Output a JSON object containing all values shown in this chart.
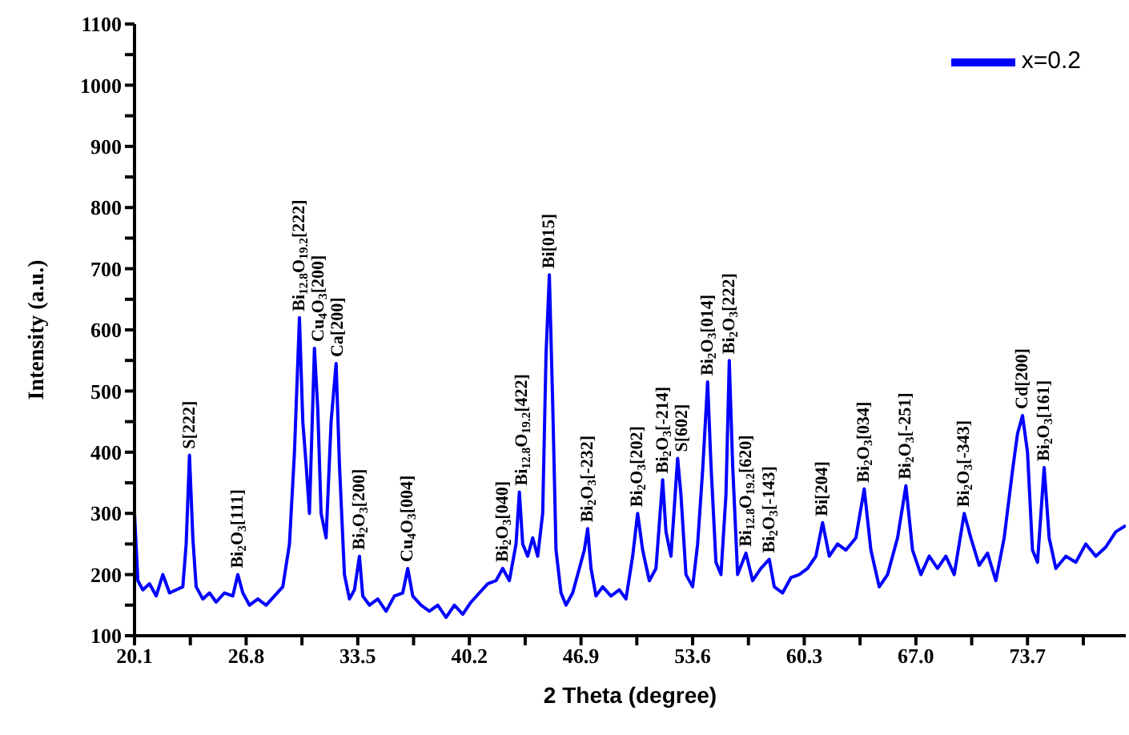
{
  "chart_data": {
    "type": "line",
    "xlabel": "2 Theta (degree)",
    "ylabel": "Intensity (a.u.)",
    "xlim": [
      20.1,
      79.6
    ],
    "xticks": [
      20.1,
      {
        "value": 23.45,
        "label": null
      },
      26.8,
      {
        "value": 30.15,
        "label": null
      },
      33.5,
      {
        "value": 36.85,
        "label": null
      },
      40.2,
      {
        "value": 43.55,
        "label": null
      },
      46.9,
      {
        "value": 50.25,
        "label": null
      },
      53.6,
      {
        "value": 56.95,
        "label": null
      },
      60.3,
      {
        "value": 63.65,
        "label": null
      },
      {
        "value": 67.0,
        "label": "67.0"
      },
      {
        "value": 70.35,
        "label": null
      },
      73.7,
      {
        "value": 77.05,
        "label": null
      }
    ],
    "ylim": [
      100,
      1100
    ],
    "yticks": [
      100,
      {
        "value": 150,
        "label": null
      },
      200,
      {
        "value": 250,
        "label": null
      },
      300,
      {
        "value": 350,
        "label": null
      },
      400,
      {
        "value": 450,
        "label": null
      },
      500,
      {
        "value": 550,
        "label": null
      },
      600,
      {
        "value": 650,
        "label": null
      },
      700,
      {
        "value": 750,
        "label": null
      },
      800,
      {
        "value": 850,
        "label": null
      },
      900,
      {
        "value": 950,
        "label": null
      },
      1000,
      {
        "value": 1050,
        "label": null
      },
      1100
    ],
    "grid": false,
    "legend": "top right",
    "marker": "none",
    "line_style": "solid",
    "x": [
      20.1,
      20.3,
      20.6,
      21.0,
      21.4,
      21.8,
      22.2,
      22.6,
      23.0,
      23.2,
      23.4,
      23.6,
      23.8,
      24.2,
      24.6,
      25.0,
      25.5,
      26.0,
      26.3,
      26.6,
      27.0,
      27.5,
      28.0,
      28.5,
      29.0,
      29.4,
      29.7,
      30.0,
      30.2,
      30.4,
      30.6,
      30.9,
      31.1,
      31.3,
      31.6,
      31.9,
      32.2,
      32.4,
      32.7,
      33.0,
      33.3,
      33.6,
      33.8,
      34.2,
      34.7,
      35.2,
      35.7,
      36.2,
      36.5,
      36.8,
      37.3,
      37.8,
      38.3,
      38.8,
      39.3,
      39.8,
      40.3,
      40.8,
      41.3,
      41.8,
      42.2,
      42.6,
      43.0,
      43.2,
      43.4,
      43.7,
      44.0,
      44.3,
      44.6,
      44.8,
      45.0,
      45.2,
      45.4,
      45.7,
      46.0,
      46.4,
      46.8,
      47.1,
      47.3,
      47.5,
      47.8,
      48.2,
      48.7,
      49.2,
      49.6,
      50.0,
      50.3,
      50.6,
      51.0,
      51.4,
      51.8,
      52.0,
      52.3,
      52.7,
      52.9,
      53.2,
      53.6,
      53.9,
      54.2,
      54.5,
      54.7,
      55.0,
      55.3,
      55.6,
      55.8,
      56.0,
      56.3,
      56.8,
      57.2,
      57.7,
      58.2,
      58.5,
      59.0,
      59.5,
      60.0,
      60.5,
      61.0,
      61.4,
      61.8,
      62.3,
      62.8,
      63.4,
      63.9,
      64.3,
      64.8,
      65.3,
      65.9,
      66.4,
      66.8,
      67.3,
      67.8,
      68.3,
      68.8,
      69.3,
      69.9,
      70.3,
      70.8,
      71.3,
      71.8,
      72.3,
      72.8,
      73.1,
      73.4,
      73.7,
      74.0,
      74.3,
      74.7,
      75.0,
      75.4,
      76.0,
      76.6,
      77.2,
      77.8,
      78.4,
      79.0,
      79.6
    ],
    "series": [
      {
        "name": "x=0.2",
        "color": "#0000ff",
        "values": [
          300,
          190,
          175,
          185,
          165,
          200,
          170,
          175,
          180,
          250,
          395,
          260,
          180,
          160,
          170,
          155,
          170,
          165,
          200,
          170,
          150,
          160,
          150,
          165,
          180,
          250,
          400,
          620,
          450,
          380,
          300,
          570,
          470,
          300,
          260,
          450,
          545,
          380,
          200,
          160,
          175,
          230,
          165,
          150,
          160,
          140,
          165,
          170,
          210,
          165,
          150,
          140,
          150,
          130,
          150,
          135,
          155,
          170,
          185,
          190,
          210,
          190,
          250,
          335,
          250,
          230,
          260,
          230,
          300,
          560,
          690,
          480,
          240,
          170,
          150,
          170,
          210,
          240,
          275,
          210,
          165,
          180,
          165,
          175,
          160,
          230,
          300,
          240,
          190,
          210,
          355,
          270,
          230,
          390,
          330,
          200,
          180,
          250,
          370,
          515,
          380,
          220,
          200,
          330,
          550,
          380,
          200,
          235,
          190,
          210,
          225,
          180,
          170,
          195,
          200,
          210,
          230,
          285,
          230,
          250,
          240,
          260,
          340,
          240,
          180,
          200,
          260,
          345,
          240,
          200,
          230,
          210,
          230,
          200,
          300,
          260,
          215,
          235,
          190,
          260,
          370,
          430,
          460,
          400,
          240,
          220,
          375,
          260,
          210,
          230,
          220,
          250,
          230,
          245,
          270,
          280
        ]
      }
    ],
    "annotations": [
      {
        "text": "S[222]",
        "x": 23.4,
        "y": 395
      },
      {
        "text": "Bi$_{2}$O$_{3}$[111]",
        "x": 26.3,
        "y": 200
      },
      {
        "text": "Bi$_{12.8}$O$_{19.2}$[222]",
        "x": 30.0,
        "y": 620
      },
      {
        "text": "Cu$_{4}$O$_{3}$[200]",
        "x": 30.9,
        "y": 570
      },
      {
        "text": "Ca[200]",
        "x": 32.2,
        "y": 545
      },
      {
        "text": "Bi$_{2}$O$_{3}$[200]",
        "x": 33.6,
        "y": 230
      },
      {
        "text": "Cu$_{4}$O$_{3}$[004]",
        "x": 36.5,
        "y": 210
      },
      {
        "text": "Bi$_{2}$O$_{3}$[040]",
        "x": 42.2,
        "y": 210
      },
      {
        "text": "Bi$_{12.8}$O$_{19.2}$[422]",
        "x": 43.2,
        "y": 335
      },
      {
        "text": "Bi[015]",
        "x": 45.0,
        "y": 690
      },
      {
        "text": "Bi$_{2}$O$_{3}$[-232]",
        "x": 47.3,
        "y": 275
      },
      {
        "text": "Bi$_{2}$O$_{3}$[202]",
        "x": 50.3,
        "y": 300
      },
      {
        "text": "Bi$_{2}$O$_{3}$[-214]",
        "x": 51.8,
        "y": 355
      },
      {
        "text": "S[602]",
        "x": 52.7,
        "y": 390
      },
      {
        "text": "Bi$_{2}$O$_{3}$[014]",
        "x": 54.5,
        "y": 515
      },
      {
        "text": "Bi$_{2}$O$_{3}$[222]",
        "x": 55.8,
        "y": 550
      },
      {
        "text": "Bi$_{12.8}$O$_{19.2}$[620]",
        "x": 56.8,
        "y": 235
      },
      {
        "text": "Bi$_{2}$O$_{3}$[-143]",
        "x": 58.2,
        "y": 225
      },
      {
        "text": "Bi[204]",
        "x": 61.4,
        "y": 285
      },
      {
        "text": "Bi$_{2}$O$_{3}$[034]",
        "x": 63.9,
        "y": 340
      },
      {
        "text": "Bi$_{2}$O$_{3}$[-251]",
        "x": 66.4,
        "y": 345
      },
      {
        "text": "Bi$_{2}$O$_{3}$[-343]",
        "x": 69.9,
        "y": 300
      },
      {
        "text": "Cd[200]",
        "x": 73.4,
        "y": 460
      },
      {
        "text": "Bi$_{2}$O$_{3}$[161]",
        "x": 74.7,
        "y": 375
      }
    ]
  }
}
